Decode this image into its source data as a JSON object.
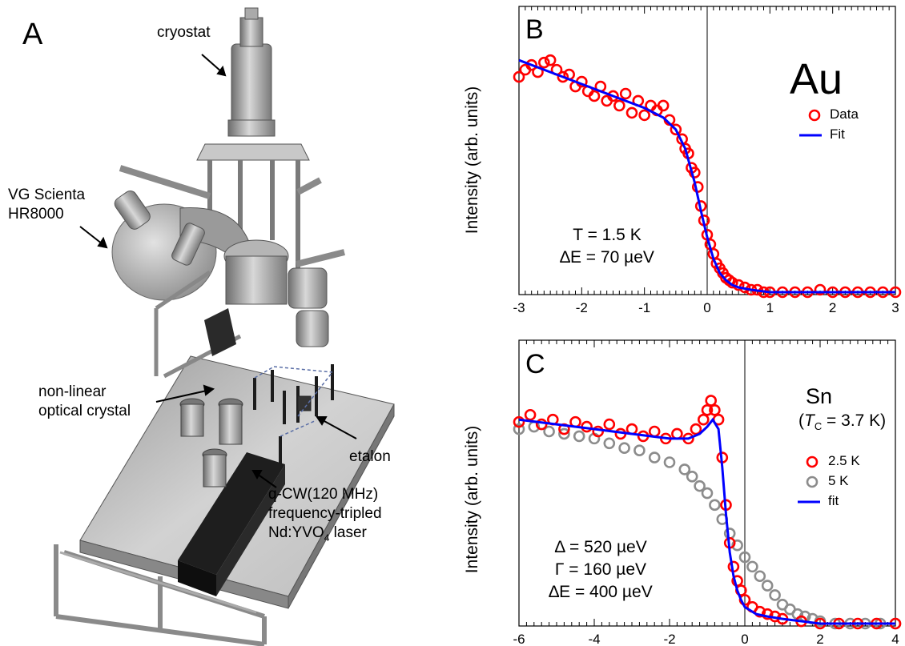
{
  "panel_a": {
    "letter": "A",
    "labels": {
      "cryostat": "cryostat",
      "analyzer_line1": "VG Scienta",
      "analyzer_line2": "HR8000",
      "crystal_line1": "non-linear",
      "crystal_line2": "optical crystal",
      "etalon": "etalon",
      "laser_line1": "q-CW(120 MHz)",
      "laser_line2": "frequency-tripled",
      "laser_line3_pre": "Nd:YVO",
      "laser_line3_sub": "4",
      "laser_line3_post": " laser"
    }
  },
  "chart_data": [
    {
      "type": "scatter",
      "panel": "B",
      "ylabel": "Intensity (arb. units)",
      "xlabel": "",
      "xlim": [
        -3,
        3
      ],
      "xticks": [
        "-3",
        "-2",
        "-1",
        "0",
        "1",
        "2",
        "3"
      ],
      "material": "Au",
      "annotation": {
        "line1": "T = 1.5 K",
        "line2": "∆E = 70 µeV"
      },
      "legend": {
        "data": "Data",
        "fit": "Fit",
        "position": "top-right"
      },
      "series": [
        {
          "name": "Data",
          "kind": "markers",
          "color": "#ff0000",
          "x": [
            -3.0,
            -2.9,
            -2.8,
            -2.7,
            -2.6,
            -2.5,
            -2.4,
            -2.3,
            -2.2,
            -2.1,
            -2.0,
            -1.9,
            -1.8,
            -1.7,
            -1.6,
            -1.5,
            -1.4,
            -1.3,
            -1.2,
            -1.1,
            -1.0,
            -0.9,
            -0.8,
            -0.7,
            -0.6,
            -0.5,
            -0.4,
            -0.35,
            -0.3,
            -0.25,
            -0.2,
            -0.15,
            -0.1,
            -0.05,
            0.0,
            0.05,
            0.1,
            0.15,
            0.2,
            0.25,
            0.3,
            0.35,
            0.4,
            0.5,
            0.6,
            0.7,
            0.8,
            0.9,
            1.0,
            1.2,
            1.4,
            1.6,
            1.8,
            2.0,
            2.2,
            2.4,
            2.6,
            2.8,
            3.0
          ],
          "y": [
            0.9,
            0.93,
            0.95,
            0.92,
            0.96,
            0.97,
            0.93,
            0.9,
            0.91,
            0.86,
            0.88,
            0.84,
            0.82,
            0.86,
            0.8,
            0.82,
            0.78,
            0.83,
            0.75,
            0.8,
            0.74,
            0.78,
            0.76,
            0.78,
            0.72,
            0.68,
            0.64,
            0.6,
            0.58,
            0.52,
            0.5,
            0.44,
            0.36,
            0.3,
            0.24,
            0.2,
            0.16,
            0.12,
            0.1,
            0.08,
            0.06,
            0.05,
            0.04,
            0.03,
            0.02,
            0.01,
            0.01,
            0.0,
            0.0,
            0.0,
            0.0,
            0.0,
            0.01,
            0.0,
            0.0,
            0.0,
            0.0,
            0.0,
            0.0
          ]
        },
        {
          "name": "Fit",
          "kind": "line",
          "color": "#0000ff",
          "x": [
            -3.0,
            -2.5,
            -2.0,
            -1.5,
            -1.0,
            -0.7,
            -0.5,
            -0.35,
            -0.2,
            -0.1,
            0.0,
            0.1,
            0.2,
            0.3,
            0.4,
            0.5,
            0.7,
            1.0,
            1.5,
            2.0,
            2.5,
            3.0
          ],
          "y": [
            0.97,
            0.92,
            0.87,
            0.82,
            0.77,
            0.73,
            0.68,
            0.6,
            0.46,
            0.34,
            0.23,
            0.14,
            0.08,
            0.05,
            0.03,
            0.02,
            0.01,
            0.0,
            0.0,
            0.0,
            0.0,
            0.0
          ]
        }
      ]
    },
    {
      "type": "scatter",
      "panel": "C",
      "ylabel": "Intensity (arb. units)",
      "xlabel": "",
      "xlim": [
        -6,
        4
      ],
      "xticks": [
        "-6",
        "-4",
        "-2",
        "0",
        "2",
        "4"
      ],
      "material": "Sn",
      "tc": {
        "open": "(",
        "t": "T",
        "sub": "C",
        "value": " = 3.7 K)"
      },
      "annotation": {
        "line1": "Δ = 520 µeV",
        "line2": "Γ = 160 µeV",
        "line3": "∆E = 400 µeV"
      },
      "legend": {
        "s1": "2.5 K",
        "s2": "5 K",
        "fit": "fit",
        "position": "right"
      },
      "series": [
        {
          "name": "5 K",
          "kind": "markers",
          "color": "#8c8c8c",
          "x": [
            -6.0,
            -5.6,
            -5.2,
            -4.8,
            -4.4,
            -4.0,
            -3.6,
            -3.2,
            -2.8,
            -2.4,
            -2.0,
            -1.6,
            -1.4,
            -1.2,
            -1.0,
            -0.8,
            -0.6,
            -0.4,
            -0.2,
            0.0,
            0.2,
            0.4,
            0.6,
            0.8,
            1.0,
            1.2,
            1.4,
            1.6,
            1.8,
            2.0,
            2.4,
            2.8,
            3.2,
            3.6,
            4.0
          ],
          "y": [
            0.82,
            0.83,
            0.81,
            0.8,
            0.79,
            0.78,
            0.76,
            0.74,
            0.73,
            0.7,
            0.68,
            0.65,
            0.62,
            0.58,
            0.55,
            0.5,
            0.44,
            0.38,
            0.33,
            0.28,
            0.24,
            0.2,
            0.16,
            0.12,
            0.08,
            0.06,
            0.04,
            0.03,
            0.02,
            0.01,
            0.0,
            0.0,
            0.0,
            0.0,
            0.0
          ]
        },
        {
          "name": "2.5 K",
          "kind": "markers",
          "color": "#ff0000",
          "x": [
            -6.0,
            -5.7,
            -5.4,
            -5.1,
            -4.8,
            -4.5,
            -4.2,
            -3.9,
            -3.6,
            -3.3,
            -3.0,
            -2.7,
            -2.4,
            -2.1,
            -1.8,
            -1.5,
            -1.3,
            -1.1,
            -1.0,
            -0.9,
            -0.8,
            -0.7,
            -0.6,
            -0.5,
            -0.4,
            -0.3,
            -0.2,
            -0.1,
            0.0,
            0.2,
            0.4,
            0.6,
            0.8,
            1.0,
            1.5,
            2.0,
            2.5,
            3.0,
            3.5,
            4.0
          ],
          "y": [
            0.85,
            0.88,
            0.84,
            0.86,
            0.82,
            0.85,
            0.83,
            0.81,
            0.84,
            0.8,
            0.82,
            0.79,
            0.81,
            0.78,
            0.8,
            0.78,
            0.82,
            0.86,
            0.9,
            0.94,
            0.9,
            0.86,
            0.7,
            0.5,
            0.34,
            0.24,
            0.18,
            0.14,
            0.1,
            0.07,
            0.05,
            0.04,
            0.03,
            0.02,
            0.01,
            0.0,
            0.0,
            0.0,
            0.0,
            0.0
          ]
        },
        {
          "name": "fit",
          "kind": "line",
          "color": "#0000ff",
          "x": [
            -6.0,
            -5.0,
            -4.0,
            -3.0,
            -2.0,
            -1.5,
            -1.2,
            -1.0,
            -0.85,
            -0.7,
            -0.6,
            -0.5,
            -0.4,
            -0.3,
            -0.2,
            -0.1,
            0.0,
            0.3,
            0.6,
            1.0,
            1.5,
            2.0,
            3.0,
            4.0
          ],
          "y": [
            0.86,
            0.84,
            0.82,
            0.8,
            0.78,
            0.78,
            0.8,
            0.83,
            0.86,
            0.82,
            0.66,
            0.46,
            0.3,
            0.2,
            0.14,
            0.1,
            0.07,
            0.04,
            0.03,
            0.02,
            0.01,
            0.0,
            0.0,
            0.0
          ]
        }
      ]
    }
  ]
}
